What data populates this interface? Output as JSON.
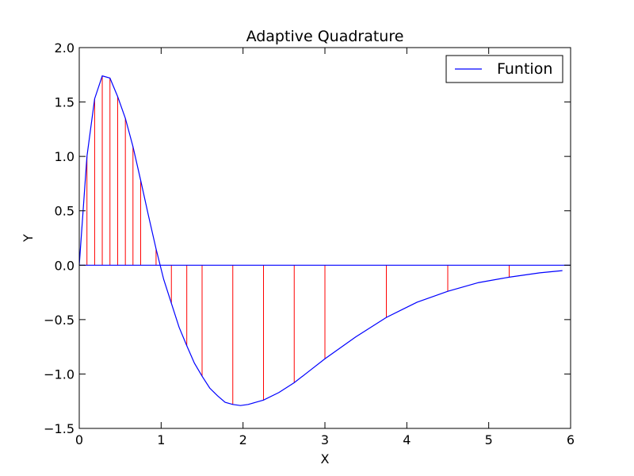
{
  "chart_data": {
    "type": "line",
    "title": "Adaptive Quadrature",
    "xlabel": "X",
    "ylabel": "Y",
    "xlim": [
      0,
      6
    ],
    "ylim": [
      -1.5,
      2.0
    ],
    "x_ticks": [
      0,
      1,
      2,
      3,
      4,
      5,
      6
    ],
    "x_tick_labels": [
      "0",
      "1",
      "2",
      "3",
      "4",
      "5",
      "6"
    ],
    "y_ticks": [
      -1.5,
      -1.0,
      -0.5,
      0.0,
      0.5,
      1.0,
      1.5,
      2.0
    ],
    "y_tick_labels": [
      "−1.5",
      "−1.0",
      "−0.5",
      "0.0",
      "0.5",
      "1.0",
      "1.5",
      "2.0"
    ],
    "legend": {
      "position": "upper-right",
      "entries": [
        "Funtion"
      ]
    },
    "grid": false,
    "series": [
      {
        "name": "Funtion",
        "color": "#0000ff",
        "x": [
          0.0,
          0.094,
          0.188,
          0.281,
          0.375,
          0.469,
          0.563,
          0.656,
          0.75,
          0.844,
          0.938,
          1.031,
          1.125,
          1.219,
          1.313,
          1.406,
          1.5,
          1.594,
          1.688,
          1.781,
          1.875,
          1.969,
          2.063,
          2.156,
          2.25,
          2.438,
          2.625,
          2.813,
          3.0,
          3.375,
          3.75,
          4.125,
          4.5,
          4.875,
          5.25,
          5.625,
          5.9
        ],
        "y": [
          0.0,
          1.0,
          1.53,
          1.74,
          1.72,
          1.55,
          1.35,
          1.09,
          0.78,
          0.46,
          0.15,
          -0.13,
          -0.35,
          -0.57,
          -0.74,
          -0.9,
          -1.02,
          -1.13,
          -1.2,
          -1.26,
          -1.28,
          -1.29,
          -1.28,
          -1.26,
          -1.24,
          -1.17,
          -1.08,
          -0.97,
          -0.86,
          -0.66,
          -0.48,
          -0.34,
          -0.24,
          -0.16,
          -0.11,
          -0.07,
          -0.05
        ]
      },
      {
        "name": "",
        "color": "#000000",
        "kind": "baseline",
        "x": [
          0,
          6
        ],
        "y": [
          0,
          0
        ]
      }
    ],
    "sample_points": {
      "color": "#ff0000",
      "x": [
        0.094,
        0.188,
        0.281,
        0.375,
        0.469,
        0.563,
        0.656,
        0.75,
        0.938,
        1.125,
        1.313,
        1.5,
        1.875,
        2.25,
        2.625,
        3.0,
        3.75,
        4.5,
        5.25
      ],
      "y": [
        1.0,
        1.53,
        1.74,
        1.72,
        1.55,
        1.35,
        1.09,
        0.78,
        0.15,
        -0.35,
        -0.74,
        -1.02,
        -1.28,
        -1.24,
        -1.08,
        -0.86,
        -0.48,
        -0.24,
        -0.11
      ]
    }
  }
}
